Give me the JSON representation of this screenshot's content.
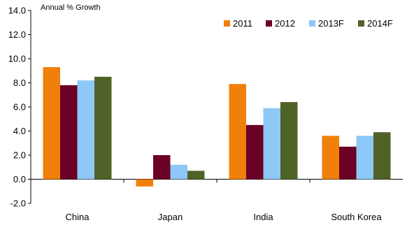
{
  "chart_data": {
    "type": "bar",
    "title": "",
    "ylabel": "Annual % Growth",
    "xlabel": "",
    "categories": [
      "China",
      "Japan",
      "India",
      "South Korea"
    ],
    "series": [
      {
        "name": "2011",
        "color": "#F0800A",
        "values": [
          9.3,
          -0.6,
          7.9,
          3.6
        ]
      },
      {
        "name": "2012",
        "color": "#6B0026",
        "values": [
          7.8,
          2.0,
          4.5,
          2.7
        ]
      },
      {
        "name": "2013F",
        "color": "#8EC8F8",
        "values": [
          8.2,
          1.2,
          5.9,
          3.6
        ]
      },
      {
        "name": "2014F",
        "color": "#4F6228",
        "values": [
          8.5,
          0.7,
          6.4,
          3.9
        ]
      }
    ],
    "ylim": [
      -2.0,
      14.0
    ],
    "yticks": [
      "-2.0",
      "0.0",
      "2.0",
      "4.0",
      "6.0",
      "8.0",
      "10.0",
      "12.0",
      "14.0"
    ],
    "grid": false,
    "legend_position": "top-right"
  }
}
